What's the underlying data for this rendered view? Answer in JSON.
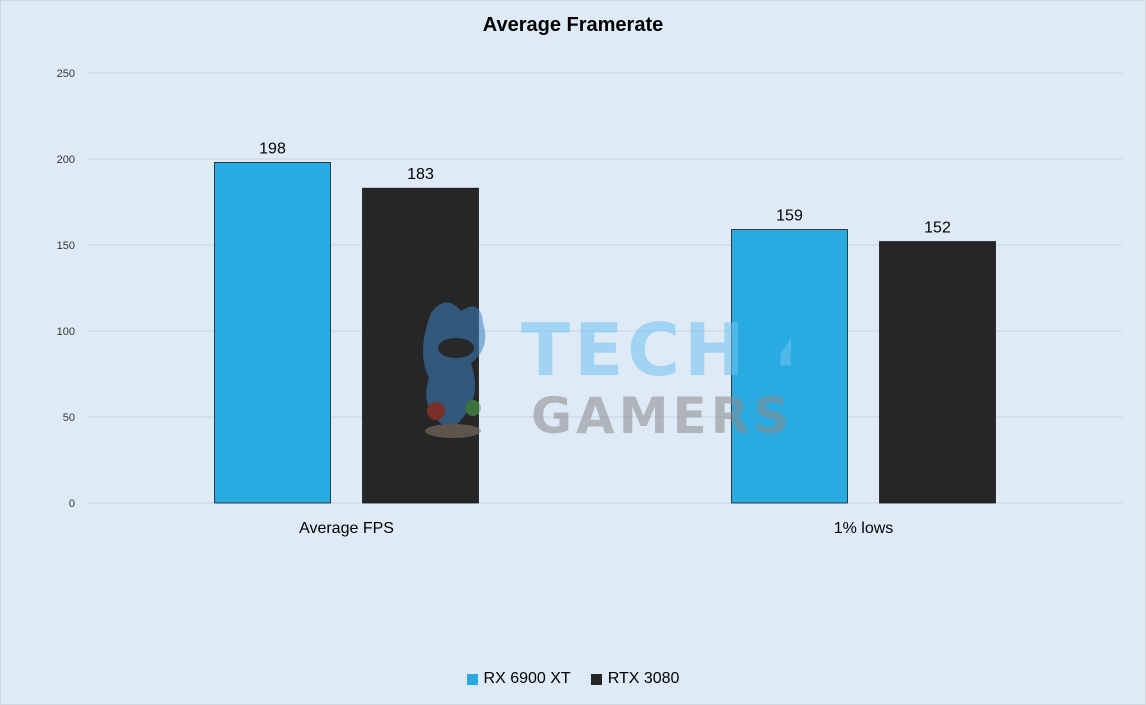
{
  "chart_data": {
    "type": "bar",
    "title": "Average Framerate",
    "categories": [
      "Average FPS",
      "1% lows"
    ],
    "series": [
      {
        "name": "RX 6900 XT",
        "values": [
          198,
          159
        ],
        "color": "#29abe2"
      },
      {
        "name": "RTX 3080",
        "values": [
          183,
          152
        ],
        "color": "#262626"
      }
    ],
    "ylim": [
      0,
      250
    ],
    "yticks": [
      0,
      50,
      100,
      150,
      200,
      250
    ],
    "xlabel": "",
    "ylabel": "",
    "grid": true,
    "legend_position": "bottom",
    "data_labels": true
  },
  "watermark": {
    "line1": "TECH 4",
    "line2": "GAMERS"
  }
}
